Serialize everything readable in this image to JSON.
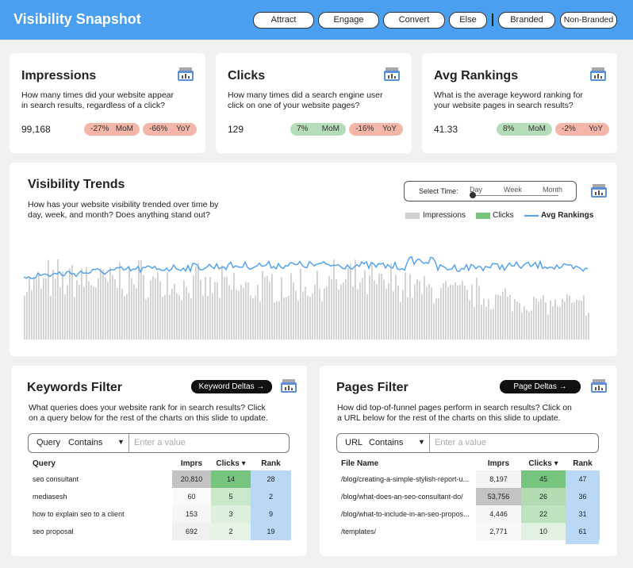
{
  "header": {
    "title": "Visibility Snapshot",
    "nav": [
      "Attract",
      "Engage",
      "Convert",
      "Else",
      "Branded",
      "Non-Branded"
    ]
  },
  "kpis": [
    {
      "title": "Impressions",
      "desc_1": "How many times did your website appear",
      "desc_2": "in search results, regardless of a click?",
      "value": "99,168",
      "mom": "-27%",
      "mom_label": "MoM",
      "yoy": "-66%",
      "yoy_label": "YoY"
    },
    {
      "title": "Clicks",
      "desc_1": "How many times did a search engine user",
      "desc_2": "click on one of your website pages?",
      "value": "129",
      "mom": "7%",
      "mom_label": "MoM",
      "yoy": "-16%",
      "yoy_label": "YoY"
    },
    {
      "title": "Avg Rankings",
      "desc_1": "What is the average keyword ranking for",
      "desc_2": "your website pages in search results?",
      "value": "41.33",
      "mom": "8%",
      "mom_label": "MoM",
      "yoy": "-2%",
      "yoy_label": "YoY"
    }
  ],
  "trends": {
    "title": "Visibility Trends",
    "desc_1": "How has your website visibility trended over time by",
    "desc_2": "day, week, and month? Does anything stand out?",
    "select_time_label": "Select Time:",
    "time_options": [
      "Day",
      "Week",
      "Month"
    ],
    "selected_time": "Day",
    "legend": [
      "Impressions",
      "Clicks",
      "Avg Rankings"
    ]
  },
  "colors": {
    "header_bg": "#4a9ff0",
    "negative": "#f4b6a8",
    "positive": "#b5ddb9",
    "impressions_bar": "#cfcfcf",
    "clicks_bar": "#76c47d",
    "rank_line": "#4a9ff0",
    "rank_cell": "#b9d8f5"
  },
  "keywords": {
    "title": "Keywords Filter",
    "button": "Keyword Deltas →",
    "desc_1": "What queries does your website rank for in search results? Click",
    "desc_2": "on a query below for the rest of the charts on this slide to update.",
    "filter_field": "Query",
    "filter_op": "Contains",
    "placeholder": "Enter a value",
    "columns": [
      "Query",
      "Imprs",
      "Clicks ▾",
      "Rank"
    ],
    "rows": [
      {
        "name": "seo consultant",
        "imprs": "20,810",
        "clicks": "14",
        "rank": "28"
      },
      {
        "name": "mediasesh",
        "imprs": "60",
        "clicks": "5",
        "rank": "2"
      },
      {
        "name": "how to explain seo to a client",
        "imprs": "153",
        "clicks": "3",
        "rank": "9"
      },
      {
        "name": "seo proposal",
        "imprs": "692",
        "clicks": "2",
        "rank": "19"
      }
    ]
  },
  "pages": {
    "title": "Pages Filter",
    "button": "Page Deltas →",
    "desc_1": "How did top-of-funnel pages perform in search results? Click on",
    "desc_2": "a URL below for the rest of the charts on this slide to update.",
    "filter_field": "URL",
    "filter_op": "Contains",
    "placeholder": "Enter a value",
    "columns": [
      "File Name",
      "Imprs",
      "Clicks ▾",
      "Rank"
    ],
    "rows": [
      {
        "name": "/blog/creating-a-simple-stylish-report-u...",
        "imprs": "8,197",
        "clicks": "45",
        "rank": "47"
      },
      {
        "name": "/blog/what-does-an-seo-consultant-do/",
        "imprs": "53,756",
        "clicks": "26",
        "rank": "36"
      },
      {
        "name": "/blog/what-to-include-in-an-seo-propos...",
        "imprs": "4,446",
        "clicks": "22",
        "rank": "31"
      },
      {
        "name": "/templates/",
        "imprs": "2,771",
        "clicks": "10",
        "rank": "61"
      }
    ]
  }
}
